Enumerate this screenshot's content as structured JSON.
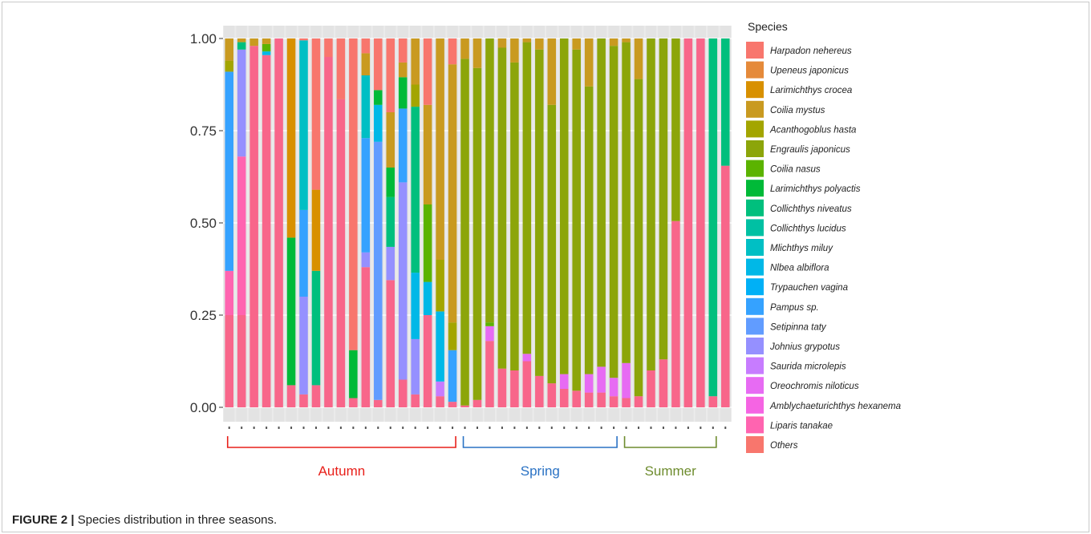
{
  "caption": {
    "figure_label": "FIGURE 2 |",
    "text": "Species distribution in three seasons."
  },
  "chart_data": {
    "type": "bar",
    "stacked": true,
    "normalized": true,
    "ylim": [
      0,
      1
    ],
    "y_ticks": [
      "0.00",
      "0.25",
      "0.50",
      "0.75",
      "1.00"
    ],
    "legend": {
      "title": "Species",
      "placement": "right",
      "entries": [
        {
          "name": "Harpadon nehereus",
          "color": "#F8766D",
          "italic": true
        },
        {
          "name": "Upeneus japonicus",
          "color": "#E58A3A",
          "italic": true
        },
        {
          "name": "Larimichthys crocea",
          "color": "#D89000",
          "italic": true
        },
        {
          "name": "Coilia mystus",
          "color": "#C99A20",
          "italic": true
        },
        {
          "name": "Acanthogoblus hasta",
          "color": "#A3A500",
          "italic": true
        },
        {
          "name": "Engraulis japonicus",
          "color": "#8CA50A",
          "italic": true
        },
        {
          "name": "Coilia nasus",
          "color": "#5BB300",
          "italic": true
        },
        {
          "name": "Larimichthys polyactis",
          "color": "#00BA38",
          "italic": true
        },
        {
          "name": "Collichthys niveatus",
          "color": "#00BF7D",
          "italic": true
        },
        {
          "name": "Collichthys lucidus",
          "color": "#00C0A3",
          "italic": true
        },
        {
          "name": "Mlichthys miluy",
          "color": "#00BFC4",
          "italic": true
        },
        {
          "name": "Nlbea albiflora",
          "color": "#00B8E7",
          "italic": true
        },
        {
          "name": "Trypauchen vagina",
          "color": "#00B0F6",
          "italic": true
        },
        {
          "name": "Pampus sp.",
          "color": "#35A2FF",
          "italic": true
        },
        {
          "name": "Setipinna taty",
          "color": "#619CFF",
          "italic": true
        },
        {
          "name": "Johnius grypotus",
          "color": "#9590FF",
          "italic": true
        },
        {
          "name": "Saurida microlepis",
          "color": "#C77CFF",
          "italic": true
        },
        {
          "name": "Oreochromis niloticus",
          "color": "#E76BF3",
          "italic": true
        },
        {
          "name": "Amblychaeturichthys hexanema",
          "color": "#F564E3",
          "italic": true
        },
        {
          "name": "Liparis tanakae",
          "color": "#FF64B0",
          "italic": true
        },
        {
          "name": "Others",
          "color": "#F8766D",
          "italic": false
        }
      ]
    },
    "others_color": "#F8668A",
    "seasons": [
      {
        "label": "Autumn",
        "color": "#E8201A",
        "bars": [
          0,
          18
        ]
      },
      {
        "label": "Spring",
        "color": "#2A72C4",
        "bars": [
          19,
          31
        ]
      },
      {
        "label": "Summer",
        "color": "#6E8C2E",
        "bars": [
          32,
          39
        ]
      }
    ],
    "bars": [
      [
        [
          "Others",
          0.25
        ],
        [
          "Liparis tanakae",
          0.12
        ],
        [
          "Pampus sp.",
          0.54
        ],
        [
          "Acanthogoblus hasta",
          0.03
        ],
        [
          "Coilia mystus",
          0.06
        ]
      ],
      [
        [
          "Others",
          0.25
        ],
        [
          "Liparis tanakae",
          0.43
        ],
        [
          "Johnius grypotus",
          0.29
        ],
        [
          "Collichthys niveatus",
          0.02
        ],
        [
          "Coilia mystus",
          0.01
        ]
      ],
      [
        [
          "Others",
          0.98
        ],
        [
          "Coilia mystus",
          0.02
        ]
      ],
      [
        [
          "Others",
          0.955
        ],
        [
          "Nlbea albiflora",
          0.01
        ],
        [
          "Coilia nasus",
          0.02
        ],
        [
          "Coilia mystus",
          0.015
        ]
      ],
      [
        [
          "Others",
          1.0
        ]
      ],
      [
        [
          "Others",
          0.06
        ],
        [
          "Larimichthys polyactis",
          0.4
        ],
        [
          "Larimichthys crocea",
          0.54
        ]
      ],
      [
        [
          "Others",
          0.035
        ],
        [
          "Johnius grypotus",
          0.265
        ],
        [
          "Pampus sp.",
          0.235
        ],
        [
          "Mlichthys miluy",
          0.46
        ],
        [
          "Harpadon nehereus",
          0.005
        ]
      ],
      [
        [
          "Others",
          0.06
        ],
        [
          "Collichthys niveatus",
          0.31
        ],
        [
          "Larimichthys crocea",
          0.22
        ],
        [
          "Harpadon nehereus",
          0.41
        ]
      ],
      [
        [
          "Others",
          0.95
        ],
        [
          "Harpadon nehereus",
          0.05
        ]
      ],
      [
        [
          "Others",
          0.835
        ],
        [
          "Harpadon nehereus",
          0.165
        ]
      ],
      [
        [
          "Others",
          0.025
        ],
        [
          "Larimichthys polyactis",
          0.13
        ],
        [
          "Harpadon nehereus",
          0.845
        ]
      ],
      [
        [
          "Others",
          0.38
        ],
        [
          "Johnius grypotus",
          0.04
        ],
        [
          "Pampus sp.",
          0.31
        ],
        [
          "Mlichthys miluy",
          0.17
        ],
        [
          "Coilia mystus",
          0.06
        ],
        [
          "Harpadon nehereus",
          0.04
        ]
      ],
      [
        [
          "Others",
          0.02
        ],
        [
          "Setipinna taty",
          0.7
        ],
        [
          "Nlbea albiflora",
          0.1
        ],
        [
          "Larimichthys polyactis",
          0.04
        ],
        [
          "Harpadon nehereus",
          0.14
        ]
      ],
      [
        [
          "Others",
          0.345
        ],
        [
          "Johnius grypotus",
          0.09
        ],
        [
          "Collichthys niveatus",
          0.135
        ],
        [
          "Larimichthys polyactis",
          0.08
        ],
        [
          "Coilia mystus",
          0.15
        ],
        [
          "Harpadon nehereus",
          0.2
        ]
      ],
      [
        [
          "Others",
          0.075
        ],
        [
          "Johnius grypotus",
          0.535
        ],
        [
          "Pampus sp.",
          0.2
        ],
        [
          "Larimichthys polyactis",
          0.085
        ],
        [
          "Coilia mystus",
          0.04
        ],
        [
          "Harpadon nehereus",
          0.065
        ]
      ],
      [
        [
          "Others",
          0.035
        ],
        [
          "Johnius grypotus",
          0.15
        ],
        [
          "Nlbea albiflora",
          0.18
        ],
        [
          "Collichthys niveatus",
          0.45
        ],
        [
          "Acanthogoblus hasta",
          0.06
        ],
        [
          "Coilia mystus",
          0.125
        ]
      ],
      [
        [
          "Others",
          0.25
        ],
        [
          "Nlbea albiflora",
          0.09
        ],
        [
          "Coilia nasus",
          0.21
        ],
        [
          "Coilia mystus",
          0.27
        ],
        [
          "Harpadon nehereus",
          0.18
        ]
      ],
      [
        [
          "Others",
          0.03
        ],
        [
          "Saurida microlepis",
          0.04
        ],
        [
          "Nlbea albiflora",
          0.19
        ],
        [
          "Acanthogoblus hasta",
          0.14
        ],
        [
          "Coilia mystus",
          0.6
        ]
      ],
      [
        [
          "Others",
          0.015
        ],
        [
          "Pampus sp.",
          0.14
        ],
        [
          "Acanthogoblus hasta",
          0.075
        ],
        [
          "Coilia mystus",
          0.7
        ],
        [
          "Harpadon nehereus",
          0.07
        ]
      ],
      [
        [
          "Others",
          0.005
        ],
        [
          "Engraulis japonicus",
          0.94
        ],
        [
          "Coilia mystus",
          0.055
        ]
      ],
      [
        [
          "Others",
          0.02
        ],
        [
          "Engraulis japonicus",
          0.9
        ],
        [
          "Coilia mystus",
          0.08
        ]
      ],
      [
        [
          "Others",
          0.18
        ],
        [
          "Oreochromis niloticus",
          0.04
        ],
        [
          "Coilia nasus",
          0.01
        ],
        [
          "Engraulis japonicus",
          0.77
        ]
      ],
      [
        [
          "Others",
          0.105
        ],
        [
          "Engraulis japonicus",
          0.87
        ],
        [
          "Coilia mystus",
          0.025
        ]
      ],
      [
        [
          "Others",
          0.1
        ],
        [
          "Engraulis japonicus",
          0.835
        ],
        [
          "Coilia mystus",
          0.065
        ]
      ],
      [
        [
          "Others",
          0.125
        ],
        [
          "Oreochromis niloticus",
          0.02
        ],
        [
          "Engraulis japonicus",
          0.845
        ],
        [
          "Coilia mystus",
          0.01
        ]
      ],
      [
        [
          "Others",
          0.085
        ],
        [
          "Engraulis japonicus",
          0.885
        ],
        [
          "Coilia mystus",
          0.03
        ]
      ],
      [
        [
          "Others",
          0.065
        ],
        [
          "Engraulis japonicus",
          0.755
        ],
        [
          "Coilia mystus",
          0.18
        ]
      ],
      [
        [
          "Others",
          0.05
        ],
        [
          "Oreochromis niloticus",
          0.04
        ],
        [
          "Engraulis japonicus",
          0.91
        ]
      ],
      [
        [
          "Others",
          0.045
        ],
        [
          "Engraulis japonicus",
          0.925
        ],
        [
          "Coilia mystus",
          0.03
        ]
      ],
      [
        [
          "Others",
          0.04
        ],
        [
          "Oreochromis niloticus",
          0.05
        ],
        [
          "Engraulis japonicus",
          0.78
        ],
        [
          "Coilia mystus",
          0.13
        ]
      ],
      [
        [
          "Others",
          0.04
        ],
        [
          "Oreochromis niloticus",
          0.07
        ],
        [
          "Engraulis japonicus",
          0.89
        ]
      ],
      [
        [
          "Others",
          0.03
        ],
        [
          "Oreochromis niloticus",
          0.05
        ],
        [
          "Engraulis japonicus",
          0.9
        ],
        [
          "Coilia mystus",
          0.02
        ]
      ],
      [
        [
          "Others",
          0.025
        ],
        [
          "Oreochromis niloticus",
          0.095
        ],
        [
          "Engraulis japonicus",
          0.87
        ],
        [
          "Coilia mystus",
          0.01
        ]
      ],
      [
        [
          "Others",
          0.03
        ],
        [
          "Engraulis japonicus",
          0.86
        ],
        [
          "Coilia mystus",
          0.11
        ]
      ],
      [
        [
          "Others",
          0.1
        ],
        [
          "Engraulis japonicus",
          0.9
        ]
      ],
      [
        [
          "Others",
          0.13
        ],
        [
          "Engraulis japonicus",
          0.87
        ]
      ],
      [
        [
          "Others",
          0.505
        ],
        [
          "Engraulis japonicus",
          0.495
        ]
      ],
      [
        [
          "Others",
          1.0
        ]
      ],
      [
        [
          "Others",
          1.0
        ]
      ],
      [
        [
          "Others",
          0.03
        ],
        [
          "Collichthys niveatus",
          0.97
        ]
      ],
      [
        [
          "Others",
          0.655
        ],
        [
          "Collichthys niveatus",
          0.345
        ]
      ]
    ]
  }
}
